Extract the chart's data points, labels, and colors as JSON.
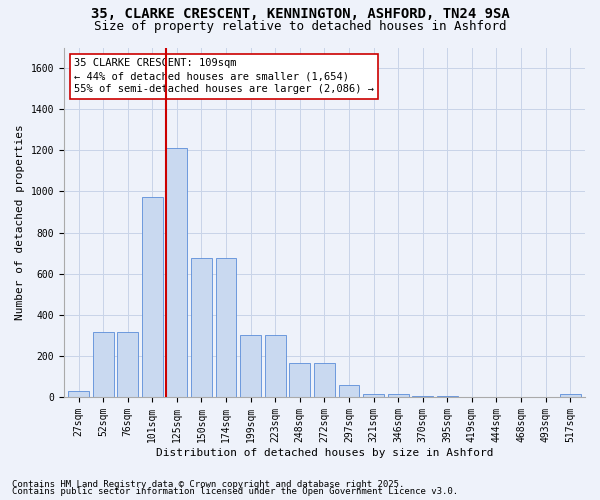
{
  "title1": "35, CLARKE CRESCENT, KENNINGTON, ASHFORD, TN24 9SA",
  "title2": "Size of property relative to detached houses in Ashford",
  "xlabel": "Distribution of detached houses by size in Ashford",
  "ylabel": "Number of detached properties",
  "categories": [
    "27sqm",
    "52sqm",
    "76sqm",
    "101sqm",
    "125sqm",
    "150sqm",
    "174sqm",
    "199sqm",
    "223sqm",
    "248sqm",
    "272sqm",
    "297sqm",
    "321sqm",
    "346sqm",
    "370sqm",
    "395sqm",
    "419sqm",
    "444sqm",
    "468sqm",
    "493sqm",
    "517sqm"
  ],
  "values": [
    30,
    315,
    315,
    975,
    1210,
    675,
    675,
    300,
    300,
    165,
    165,
    60,
    15,
    15,
    5,
    5,
    2,
    2,
    0,
    0,
    15
  ],
  "bar_color": "#c9d9f0",
  "bar_edge_color": "#5b8dd9",
  "grid_color": "#c8d4e8",
  "background_color": "#eef2fa",
  "vline_color": "#cc0000",
  "vline_pos": 3.55,
  "annotation_text": "35 CLARKE CRESCENT: 109sqm\n← 44% of detached houses are smaller (1,654)\n55% of semi-detached houses are larger (2,086) →",
  "annotation_box_color": "#ffffff",
  "annotation_edge_color": "#cc0000",
  "footnote1": "Contains HM Land Registry data © Crown copyright and database right 2025.",
  "footnote2": "Contains public sector information licensed under the Open Government Licence v3.0.",
  "ylim": [
    0,
    1700
  ],
  "yticks": [
    0,
    200,
    400,
    600,
    800,
    1000,
    1200,
    1400,
    1600
  ],
  "title_fontsize": 10,
  "subtitle_fontsize": 9,
  "axis_label_fontsize": 8,
  "tick_fontsize": 7,
  "annotation_fontsize": 7.5,
  "footnote_fontsize": 6.5
}
